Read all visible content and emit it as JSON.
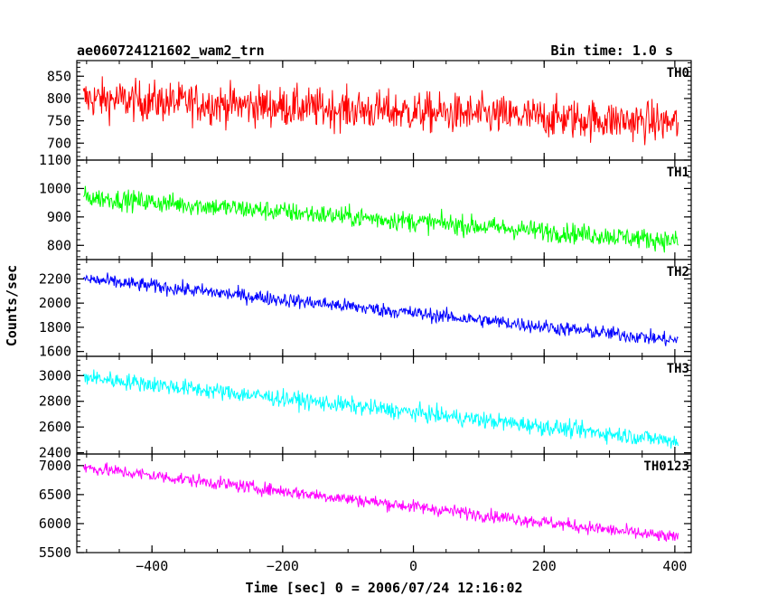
{
  "header": {
    "title": "ae060724121602_wam2_trn",
    "bin_time": "Bin time: 1.0 s"
  },
  "chart_data": {
    "type": "line",
    "xlabel": "Time [sec] 0 = 2006/07/24 12:16:02",
    "ylabel": "Counts/sec",
    "xlim": [
      -515,
      425
    ],
    "xticks": [
      -400,
      -200,
      0,
      200,
      400
    ],
    "xtick_labels": [
      "−400",
      "−200",
      "0",
      "200",
      "400"
    ],
    "x_range_data": [
      -505,
      405
    ],
    "panels": [
      {
        "name": "TH0",
        "color": "#ff0000",
        "ylim": [
          662,
          885
        ],
        "yticks": [
          700,
          750,
          800,
          850
        ],
        "start": 800,
        "end": 745,
        "noise": 38
      },
      {
        "name": "TH1",
        "color": "#00ff00",
        "ylim": [
          750,
          1100
        ],
        "yticks": [
          800,
          900,
          1000,
          1100
        ],
        "start": 970,
        "end": 815,
        "noise": 30
      },
      {
        "name": "TH2",
        "color": "#0000ff",
        "ylim": [
          1560,
          2360
        ],
        "yticks": [
          1600,
          1800,
          2000,
          2200
        ],
        "start": 2200,
        "end": 1690,
        "noise": 50
      },
      {
        "name": "TH3",
        "color": "#00ffff",
        "ylim": [
          2390,
          3150
        ],
        "yticks": [
          2400,
          2600,
          2800,
          3000
        ],
        "start": 2990,
        "end": 2490,
        "noise": 55
      },
      {
        "name": "TH0123",
        "color": "#ff00ff",
        "ylim": [
          5500,
          7200
        ],
        "yticks": [
          5500,
          6000,
          6500,
          7000
        ],
        "start": 6970,
        "end": 5750,
        "noise": 95
      }
    ]
  }
}
